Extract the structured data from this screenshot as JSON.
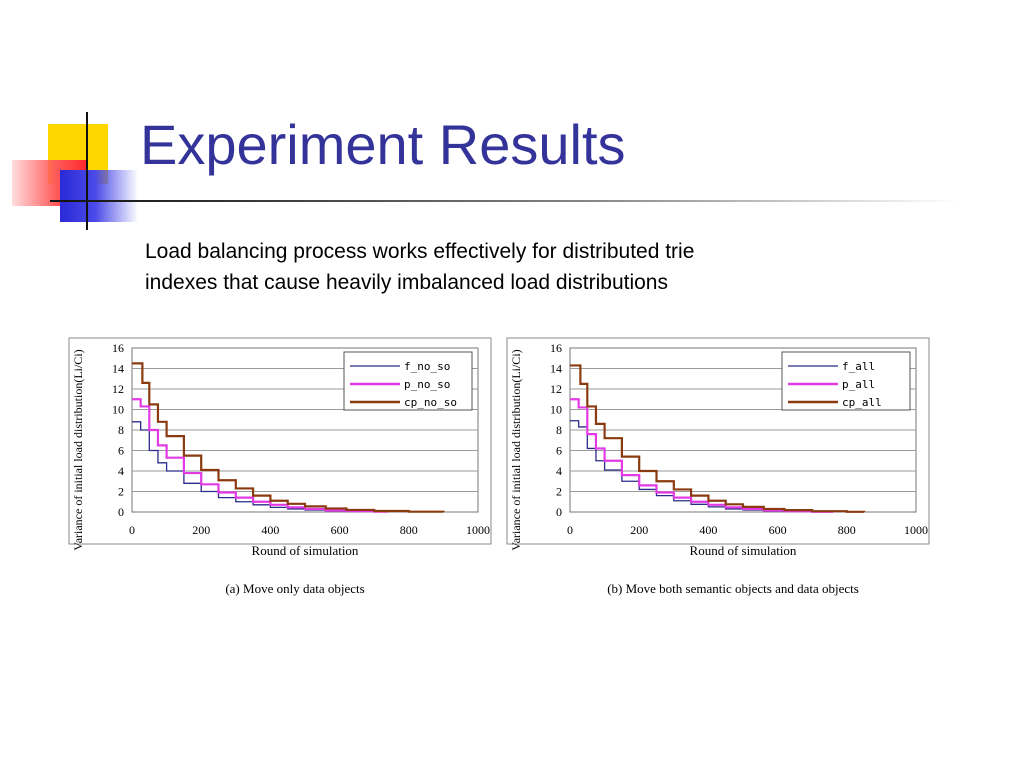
{
  "slide": {
    "title": "Experiment Results",
    "subtitle_lines": [
      "Load balancing process works effectively for distributed trie",
      "indexes that cause heavily imbalanced load distributions"
    ]
  },
  "colors": {
    "title": "#333399",
    "series_f": "#2b2b8a",
    "series_p": "#e23be6",
    "series_cp": "#8b3a10"
  },
  "chart_data": [
    {
      "type": "line",
      "caption": "(a) Move only data objects",
      "xlabel": "Round of simulation",
      "ylabel": "Variance of initial load distribution(Li/Ci)",
      "xlim": [
        0,
        1000
      ],
      "ylim": [
        0,
        16
      ],
      "xticks": [
        "0",
        "200",
        "400",
        "600",
        "800",
        "1000"
      ],
      "yticks": [
        "0",
        "2",
        "4",
        "6",
        "8",
        "10",
        "12",
        "14",
        "16"
      ],
      "grid": true,
      "legend_position": "top-right",
      "series": [
        {
          "name": "f_no_so",
          "color": "#2b2b8a",
          "x": [
            0,
            25,
            50,
            75,
            100,
            150,
            200,
            250,
            300,
            350,
            400,
            450,
            500,
            560,
            620,
            660
          ],
          "y": [
            8.8,
            8.0,
            6.0,
            4.8,
            4.0,
            2.8,
            2.0,
            1.4,
            1.0,
            0.7,
            0.45,
            0.3,
            0.2,
            0.1,
            0.05,
            0.0
          ]
        },
        {
          "name": "p_no_so",
          "color": "#e23be6",
          "x": [
            0,
            25,
            50,
            75,
            100,
            150,
            200,
            250,
            300,
            350,
            400,
            450,
            500,
            560,
            620,
            700,
            740
          ],
          "y": [
            11.0,
            10.3,
            8.0,
            6.5,
            5.3,
            3.8,
            2.7,
            1.9,
            1.4,
            1.0,
            0.7,
            0.45,
            0.3,
            0.15,
            0.08,
            0.03,
            0.0
          ]
        },
        {
          "name": "cp_no_so",
          "color": "#8b3a10",
          "x": [
            0,
            30,
            50,
            75,
            100,
            150,
            200,
            250,
            300,
            350,
            400,
            450,
            500,
            560,
            620,
            700,
            800,
            900
          ],
          "y": [
            14.5,
            12.6,
            10.5,
            8.8,
            7.4,
            5.5,
            4.1,
            3.1,
            2.3,
            1.6,
            1.1,
            0.8,
            0.55,
            0.35,
            0.2,
            0.1,
            0.03,
            0.0
          ]
        }
      ]
    },
    {
      "type": "line",
      "caption": "(b) Move both semantic objects and data objects",
      "xlabel": "Round of simulation",
      "ylabel": "Variance of initial load distribution(Li/Ci)",
      "xlim": [
        0,
        1000
      ],
      "ylim": [
        0,
        16
      ],
      "xticks": [
        "0",
        "200",
        "400",
        "600",
        "800",
        "1000"
      ],
      "yticks": [
        "0",
        "2",
        "4",
        "6",
        "8",
        "10",
        "12",
        "14",
        "16"
      ],
      "grid": true,
      "legend_position": "top-right",
      "series": [
        {
          "name": "f_all",
          "color": "#2b2b8a",
          "x": [
            0,
            25,
            50,
            75,
            100,
            150,
            200,
            250,
            300,
            350,
            400,
            450,
            500,
            560,
            620,
            660
          ],
          "y": [
            8.9,
            8.3,
            6.2,
            5.0,
            4.1,
            3.0,
            2.2,
            1.6,
            1.1,
            0.75,
            0.5,
            0.3,
            0.2,
            0.1,
            0.04,
            0.0
          ]
        },
        {
          "name": "p_all",
          "color": "#e23be6",
          "x": [
            0,
            25,
            50,
            75,
            100,
            150,
            200,
            250,
            300,
            350,
            400,
            450,
            500,
            560,
            620,
            700,
            760
          ],
          "y": [
            11.0,
            10.2,
            7.6,
            6.2,
            5.0,
            3.6,
            2.6,
            1.9,
            1.4,
            1.0,
            0.7,
            0.45,
            0.3,
            0.15,
            0.07,
            0.02,
            0.0
          ]
        },
        {
          "name": "cp_all",
          "color": "#8b3a10",
          "x": [
            0,
            30,
            50,
            75,
            100,
            150,
            200,
            250,
            300,
            350,
            400,
            450,
            500,
            560,
            620,
            700,
            800,
            850
          ],
          "y": [
            14.3,
            12.5,
            10.3,
            8.6,
            7.2,
            5.4,
            4.0,
            3.0,
            2.2,
            1.6,
            1.1,
            0.75,
            0.5,
            0.3,
            0.18,
            0.08,
            0.02,
            0.0
          ]
        }
      ]
    }
  ]
}
